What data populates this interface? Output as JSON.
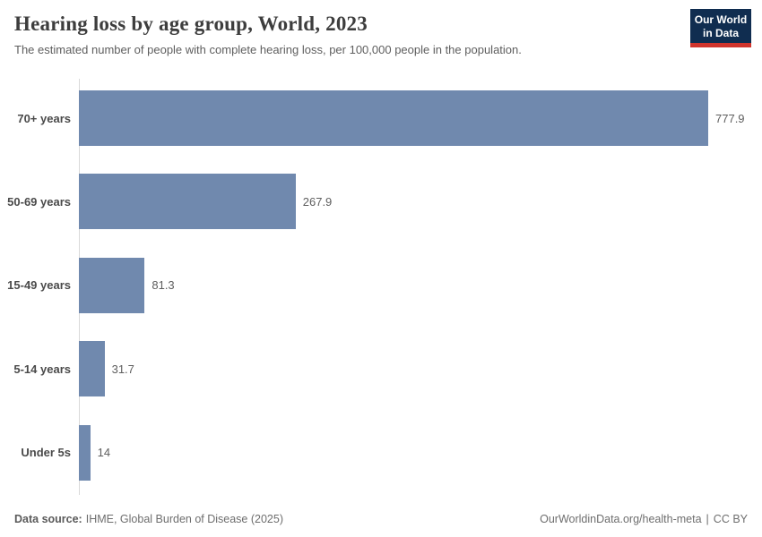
{
  "header": {
    "title": "Hearing loss by age group, World, 2023",
    "subtitle": "The estimated number of people with complete hearing loss, per 100,000 people in the population."
  },
  "logo": {
    "line1": "Our World",
    "line2": "in Data"
  },
  "chart_data": {
    "type": "bar",
    "orientation": "horizontal",
    "title": "Hearing loss by age group, World, 2023",
    "categories": [
      "70+ years",
      "50-69 years",
      "15-49 years",
      "5-14 years",
      "Under 5s"
    ],
    "values": [
      777.9,
      267.9,
      81.3,
      31.7,
      14
    ],
    "value_labels": [
      "777.9",
      "267.9",
      "81.3",
      "31.7",
      "14"
    ],
    "xlabel": "",
    "ylabel": "",
    "xlim": [
      0,
      830
    ],
    "grid": false,
    "legend": false,
    "bar_color": "#7089ae"
  },
  "footer": {
    "source_label": "Data source:",
    "source_value": "IHME, Global Burden of Disease (2025)",
    "link": "OurWorldinData.org/health-meta",
    "separator": "|",
    "license": "CC BY"
  },
  "colors": {
    "bar": "#7089ae",
    "axis": "#d9d9d9",
    "logo_bg": "#102d50",
    "logo_accent": "#d0342c"
  }
}
